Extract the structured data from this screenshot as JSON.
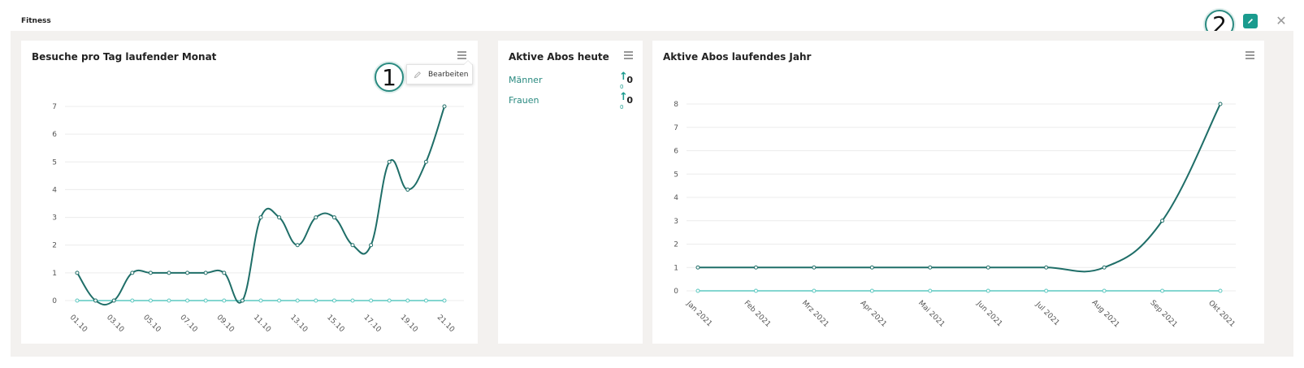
{
  "app": {
    "title": "Fitness"
  },
  "toolbar": {
    "edit_icon": "pencil-icon",
    "close_icon": "close-icon",
    "close_glyph": "✕"
  },
  "annotations": {
    "badge_1": "1",
    "badge_2": "2"
  },
  "colors": {
    "accent": "#1a9b8e",
    "series_main": "#1f6e68",
    "series_secondary": "#5cc8c0"
  },
  "card_visits": {
    "title": "Besuche pro Tag laufender Monat",
    "menu_item": "Bearbeiten"
  },
  "card_abos_today": {
    "title": "Aktive Abos heute",
    "rows": [
      {
        "label": "Männer",
        "value": "0",
        "sub": "0"
      },
      {
        "label": "Frauen",
        "value": "0",
        "sub": "0"
      }
    ]
  },
  "card_abos_year": {
    "title": "Aktive Abos laufendes Jahr"
  },
  "chart_data": [
    {
      "type": "line",
      "title": "Besuche pro Tag laufender Monat",
      "x": [
        "01.10",
        "02.10",
        "03.10",
        "04.10",
        "05.10",
        "06.10",
        "07.10",
        "08.10",
        "09.10",
        "10.10",
        "11.10",
        "12.10",
        "13.10",
        "14.10",
        "15.10",
        "16.10",
        "17.10",
        "18.10",
        "19.10",
        "20.10",
        "21.10"
      ],
      "x_tick_labels": [
        "01.10",
        "03.10",
        "05.10",
        "07.10",
        "09.10",
        "11.10",
        "13.10",
        "15.10",
        "17.10",
        "19.10",
        "21.10"
      ],
      "ylim": [
        0,
        7
      ],
      "y_ticks": [
        0,
        1,
        2,
        3,
        4,
        5,
        6,
        7
      ],
      "grid": true,
      "series": [
        {
          "values": [
            1,
            0,
            0,
            1,
            1,
            1,
            1,
            1,
            1,
            0,
            3,
            3,
            2,
            3,
            3,
            2,
            2,
            5,
            4,
            5,
            7
          ]
        },
        {
          "values": [
            0,
            0,
            0,
            0,
            0,
            0,
            0,
            0,
            0,
            0,
            0,
            0,
            0,
            0,
            0,
            0,
            0,
            0,
            0,
            0,
            0
          ]
        }
      ]
    },
    {
      "type": "line",
      "title": "Aktive Abos laufendes Jahr",
      "categories": [
        "Jan 2021",
        "Feb 2021",
        "Mrz 2021",
        "Apr 2021",
        "Mai 2021",
        "Jun 2021",
        "Jul 2021",
        "Aug 2021",
        "Sep 2021",
        "Okt 2021"
      ],
      "ylim": [
        0,
        8
      ],
      "y_ticks": [
        0,
        1,
        2,
        3,
        4,
        5,
        6,
        7,
        8
      ],
      "grid": true,
      "series": [
        {
          "values": [
            1,
            1,
            1,
            1,
            1,
            1,
            1,
            1,
            3,
            8
          ]
        },
        {
          "values": [
            0,
            0,
            0,
            0,
            0,
            0,
            0,
            0,
            0,
            0
          ]
        }
      ]
    }
  ]
}
